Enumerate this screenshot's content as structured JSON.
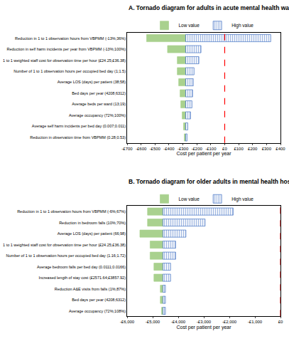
{
  "chart_data": [
    {
      "type": "bar",
      "orientation": "horizontal",
      "title": "A. Tornado diagram for adults in acute mental health wards",
      "x_label": "Cost per patient per year",
      "categories": [
        "Reduction in 1 to 1 observation hours from VBPMM (-13%;36%)",
        "Reduction in self harm incidents per year from VBPMM (-13%;100%)",
        "1 to 1 weighted staff cost for observation time per hour (£24.25;£36.38)",
        "Number of 1 to 1 observation hours per occupied bed day (1;1.5)",
        "Average LOS (days) per patient (38;58)",
        "Bed days per year (4208;6312)",
        "Average beds per ward (13;19)",
        "Average occupancy (72%;100%)",
        "Average self harm incidents per bed day (0.007;0.011)",
        "Reduction in observation time from VBPMM (0.28;0.53)"
      ],
      "base_value": -280,
      "reference_line": 0,
      "series": [
        {
          "name": "Low value",
          "color": "#a9d18e",
          "marker": "solid",
          "values": [
            -560,
            -410,
            -340,
            -340,
            -330,
            -320,
            -315,
            -305,
            -295,
            -290
          ]
        },
        {
          "name": "High value",
          "color": "#4472c4",
          "marker": "hatched",
          "values": [
            330,
            -170,
            -185,
            -220,
            -225,
            -230,
            -235,
            -245,
            -265,
            -270
          ]
        }
      ],
      "xlim": [
        -700,
        400
      ],
      "xticks": [
        {
          "value": -700,
          "label": "-£700"
        },
        {
          "value": -600,
          "label": "-£600"
        },
        {
          "value": -500,
          "label": "-£500"
        },
        {
          "value": -400,
          "label": "-£400"
        },
        {
          "value": -300,
          "label": "-£300"
        },
        {
          "value": -200,
          "label": "-£200"
        },
        {
          "value": -100,
          "label": "-£100"
        },
        {
          "value": 0,
          "label": "£0"
        },
        {
          "value": 100,
          "label": "£100"
        },
        {
          "value": 200,
          "label": "£200"
        },
        {
          "value": 300,
          "label": "£300"
        },
        {
          "value": 400,
          "label": "£400"
        }
      ],
      "legend": "top",
      "grid": false
    },
    {
      "type": "bar",
      "orientation": "horizontal",
      "title": "B. Tornado diagram for older adults in mental health hospitals",
      "x_label": "Cost per patient per year",
      "categories": [
        "Reduction in 1 to 1 observation hours from VBPMM (-6%;67%)",
        "Reduction in bedroom falls (10%;70%)",
        "Average LOS (days) per patient (66;98)",
        "1 to 1 weighted staff cost for observation time per hour (£24.25;£36.38)",
        "Number of 1 to 1 observation hours per occupied bed day (1.16;1.72)",
        "Average bedroom falls per bed day (0.0111;0.0166)",
        "Increased length of stay cost (£2571.64;£3857.92)",
        "Reduction A&E visits from falls (1%;87%)",
        "Bed days per year (4208;6312)",
        "Average occupancy (72%;108%)"
      ],
      "base_value": -4600,
      "reference_line": 0,
      "series": [
        {
          "name": "Low value",
          "color": "#a9d18e",
          "marker": "solid",
          "values": [
            -5200,
            -5200,
            -5500,
            -5100,
            -5100,
            -4950,
            -4950,
            -4700,
            -4700,
            -4650
          ]
        },
        {
          "name": "High value",
          "color": "#4472c4",
          "marker": "hatched",
          "values": [
            -1850,
            -2950,
            -3700,
            -4100,
            -4100,
            -4300,
            -4300,
            -4500,
            -4500,
            -4500
          ]
        }
      ],
      "xlim": [
        -6000,
        0
      ],
      "xticks": [
        {
          "value": -6000,
          "label": "-£6,000"
        },
        {
          "value": -5000,
          "label": "-£5,000"
        },
        {
          "value": -4000,
          "label": "-£4,000"
        },
        {
          "value": -3000,
          "label": "-£3,000"
        },
        {
          "value": -2000,
          "label": "-£2,000"
        },
        {
          "value": -1000,
          "label": "-£1,000"
        },
        {
          "value": 0,
          "label": "£0"
        }
      ],
      "legend": "top",
      "grid": false
    }
  ]
}
